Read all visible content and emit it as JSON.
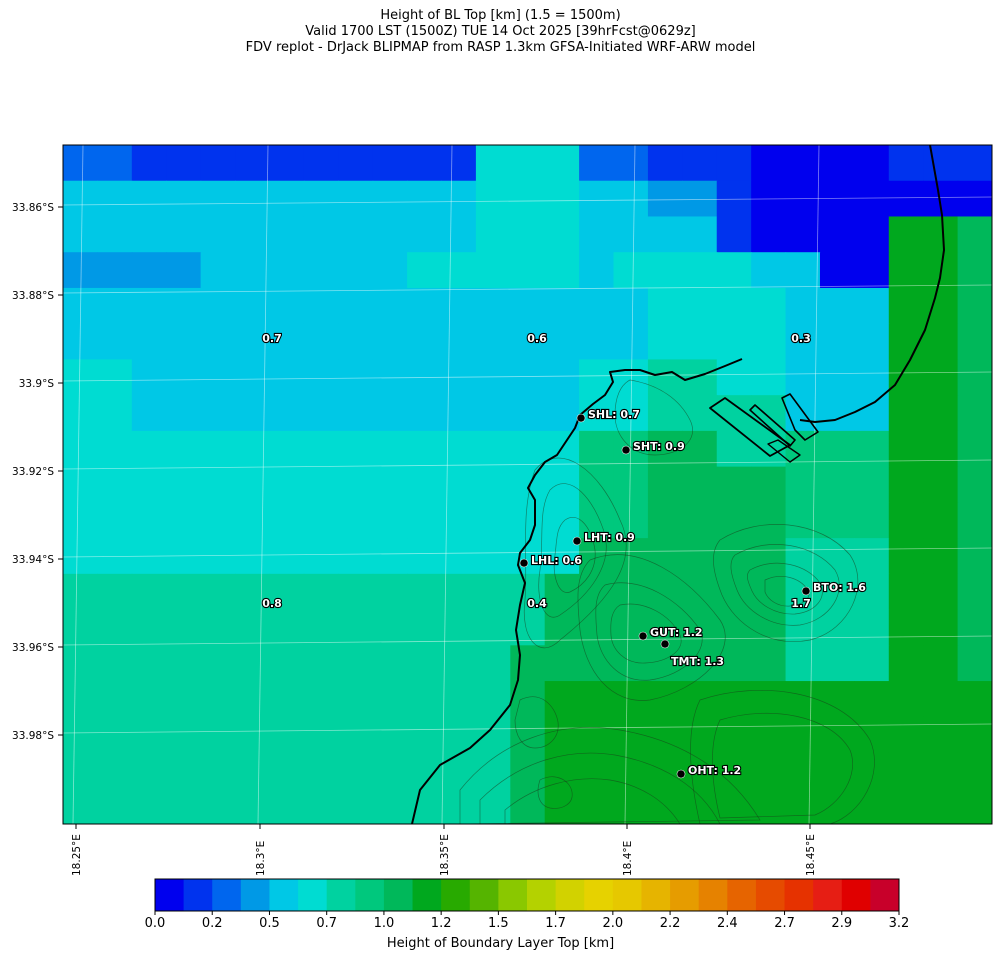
{
  "header": {
    "line1": "Height of BL Top [km] (1.5 = 1500m)",
    "line2": "Valid 1700 LST (1500Z) TUE 14 Oct 2025 [39hrFcst@0629z]",
    "line3": "FDV replot - DrJack BLIPMAP from RASP 1.3km GFSA-Initiated WRF-ARW model"
  },
  "map": {
    "lat_labels": [
      "33.86°S",
      "33.88°S",
      "33.9°S",
      "33.92°S",
      "33.94°S",
      "33.96°S",
      "33.98°S"
    ],
    "lon_labels": [
      "18.25°E",
      "18.3°E",
      "18.35°E",
      "18.4°E",
      "18.45°E"
    ],
    "region_values": [
      {
        "label": "0.7"
      },
      {
        "label": "0.6"
      },
      {
        "label": "0.3"
      },
      {
        "label": "0.8"
      },
      {
        "label": "0.4"
      },
      {
        "label": "1.7"
      }
    ],
    "stations": [
      {
        "label": "SHL: 0.7"
      },
      {
        "label": "SHT: 0.9"
      },
      {
        "label": "LHT: 0.9"
      },
      {
        "label": "LHL: 0.6"
      },
      {
        "label": "BTO: 1.6"
      },
      {
        "label": "GUT: 1.2"
      },
      {
        "label": "TMT: 1.3"
      },
      {
        "label": "OHT: 1.2"
      }
    ],
    "grid_rows": [
      "221111111111555221110000111",
      "444444444444555443310000000",
      "444444444444555444410000998",
      "333344444455555455554400998",
      "444444444444444445555444998",
      "444444444444444445555444998",
      "554444444444444556655444998",
      "554444444444444556666444998",
      "555555555555555778866777998",
      "555555555555555778888777998",
      "555555555555555778888777998",
      "555555555555555888888666998",
      "666666666666668888888666998",
      "666666666666668888888666998",
      "666666666666688888888666998",
      "666666666666689999999999999",
      "666666666666689999999999999",
      "666666666666689999999999999",
      "666666666666689999999999999"
    ]
  },
  "colorbar": {
    "colors": [
      "#0000ee",
      "#0033ee",
      "#0066ee",
      "#0099e6",
      "#00c8e6",
      "#00dcd2",
      "#00d2a0",
      "#00c87d",
      "#00b85a",
      "#00a81e",
      "#28aa00",
      "#55b400",
      "#8ac800",
      "#b4d200",
      "#d2d200",
      "#e6d200",
      "#e6c800",
      "#e6b400",
      "#e69c00",
      "#e68200",
      "#e66400",
      "#e64b00",
      "#e63200",
      "#e61e14",
      "#e00000",
      "#c8002a"
    ],
    "tick_labels": [
      "0.0",
      "0.2",
      "0.5",
      "0.7",
      "1.0",
      "1.2",
      "1.5",
      "1.7",
      "2.0",
      "2.2",
      "2.4",
      "2.7",
      "2.9",
      "3.2"
    ],
    "label": "Height of Boundary Layer Top [km]"
  }
}
